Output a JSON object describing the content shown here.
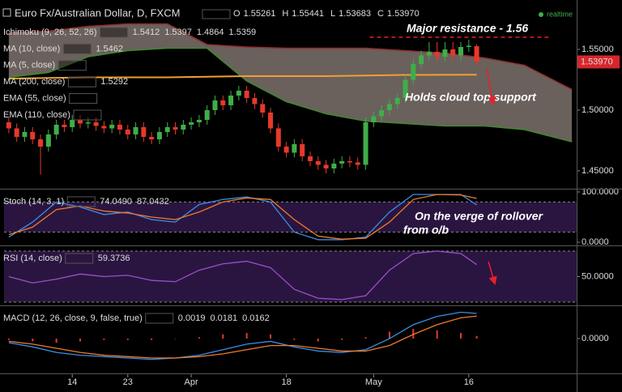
{
  "header": {
    "title": "Euro Fx/Australian Dollar, D, FXCM",
    "o_label": "O",
    "open": 1.55261,
    "h_label": "H",
    "high": 1.55441,
    "l_label": "L",
    "low": 1.53683,
    "c_label": "C",
    "status": "realtime"
  },
  "chart_data": [
    {
      "type": "candlestick",
      "open": [
        1.49,
        1.485,
        1.478,
        1.482,
        1.476,
        1.47,
        1.48,
        1.488,
        1.486,
        1.492,
        1.489,
        1.49,
        1.487,
        1.485,
        1.488,
        1.484,
        1.48,
        1.486,
        1.478,
        1.476,
        1.482,
        1.486,
        1.484,
        1.488,
        1.49,
        1.492,
        1.5,
        1.508,
        1.504,
        1.512,
        1.516,
        1.51,
        1.505,
        1.498,
        1.485,
        1.47,
        1.465,
        1.472,
        1.462,
        1.458,
        1.455,
        1.452,
        1.456,
        1.458,
        1.457,
        1.455,
        1.49,
        1.495,
        1.5,
        1.505,
        1.51,
        1.525,
        1.538,
        1.545,
        1.548,
        1.544,
        1.55,
        1.545,
        1.552,
        1.55261
      ],
      "high": [
        1.494,
        1.489,
        1.486,
        1.486,
        1.48,
        1.484,
        1.492,
        1.492,
        1.496,
        1.496,
        1.494,
        1.494,
        1.491,
        1.492,
        1.492,
        1.488,
        1.49,
        1.49,
        1.482,
        1.486,
        1.49,
        1.49,
        1.492,
        1.494,
        1.496,
        1.504,
        1.512,
        1.512,
        1.516,
        1.52,
        1.52,
        1.514,
        1.509,
        1.502,
        1.489,
        1.474,
        1.476,
        1.476,
        1.466,
        1.462,
        1.459,
        1.46,
        1.462,
        1.462,
        1.461,
        1.494,
        1.499,
        1.504,
        1.509,
        1.514,
        1.529,
        1.542,
        1.549,
        1.556,
        1.556,
        1.556,
        1.556,
        1.556,
        1.558,
        1.55441
      ],
      "low": [
        1.481,
        1.474,
        1.474,
        1.472,
        1.447,
        1.466,
        1.476,
        1.482,
        1.482,
        1.485,
        1.485,
        1.483,
        1.481,
        1.481,
        1.48,
        1.476,
        1.476,
        1.474,
        1.472,
        1.472,
        1.478,
        1.48,
        1.48,
        1.484,
        1.486,
        1.488,
        1.496,
        1.5,
        1.5,
        1.508,
        1.506,
        1.501,
        1.494,
        1.481,
        1.466,
        1.461,
        1.461,
        1.458,
        1.454,
        1.451,
        1.448,
        1.448,
        1.452,
        1.453,
        1.451,
        1.451,
        1.486,
        1.491,
        1.496,
        1.501,
        1.506,
        1.521,
        1.534,
        1.541,
        1.54,
        1.54,
        1.541,
        1.541,
        1.548,
        1.53683
      ],
      "close": [
        1.485,
        1.478,
        1.482,
        1.476,
        1.47,
        1.48,
        1.488,
        1.486,
        1.492,
        1.489,
        1.49,
        1.487,
        1.485,
        1.488,
        1.484,
        1.48,
        1.486,
        1.478,
        1.476,
        1.482,
        1.486,
        1.484,
        1.488,
        1.49,
        1.492,
        1.5,
        1.508,
        1.504,
        1.512,
        1.516,
        1.51,
        1.505,
        1.498,
        1.485,
        1.47,
        1.465,
        1.472,
        1.462,
        1.458,
        1.455,
        1.452,
        1.456,
        1.458,
        1.457,
        1.455,
        1.49,
        1.495,
        1.5,
        1.505,
        1.51,
        1.525,
        1.538,
        1.545,
        1.548,
        1.544,
        1.55,
        1.545,
        1.552,
        1.553,
        1.5397
      ],
      "xlim": [
        -0.6,
        71.6
      ],
      "xticks": [
        {
          "value": 8,
          "label": "14"
        },
        {
          "value": 15,
          "label": "23"
        },
        {
          "value": 23,
          "label": "Apr"
        },
        {
          "value": 35,
          "label": "18"
        },
        {
          "value": 46,
          "label": "May"
        },
        {
          "value": 58,
          "label": "16"
        }
      ],
      "ylim": [
        1.436,
        1.584
      ],
      "yticks": [
        {
          "value": 1.45,
          "label": "1.45000"
        },
        {
          "value": 1.5,
          "label": "1.50000"
        },
        {
          "value": 1.55,
          "label": "1.55000"
        }
      ],
      "up_color": "#3fae49",
      "down_color": "#e5392b",
      "last_price": {
        "value": 1.5397,
        "label": "1.53970"
      },
      "cloud": {
        "x": [
          0,
          5,
          10,
          15,
          20,
          25,
          30,
          35,
          40,
          45,
          50,
          55,
          60,
          65,
          71
        ],
        "upper": [
          1.564,
          1.565,
          1.569,
          1.571,
          1.571,
          1.554,
          1.552,
          1.551,
          1.551,
          1.551,
          1.549,
          1.547,
          1.543,
          1.537,
          1.517
        ],
        "lower": [
          1.527,
          1.531,
          1.544,
          1.549,
          1.551,
          1.551,
          1.524,
          1.507,
          1.497,
          1.491,
          1.489,
          1.487,
          1.487,
          1.484,
          1.474
        ],
        "upper_color": "#8e2b2b",
        "lower_color": "#3f8a2e",
        "fill": "#7d716c"
      },
      "ma200": {
        "x": [
          0,
          10,
          20,
          30,
          40,
          50,
          59
        ],
        "values": [
          1.526,
          1.527,
          1.527,
          1.528,
          1.528,
          1.529,
          1.5292
        ],
        "color": "#f0a030"
      },
      "resistance": {
        "value": 1.56,
        "label": "Major resistance - 1.56",
        "color": "#e8202a"
      },
      "annotations": [
        "Holds cloud top support"
      ],
      "indicators": [
        {
          "name": "Ichimoku (9, 26, 52, 26)",
          "values": [
            1.5412,
            1.5397,
            1.4864,
            1.5359
          ],
          "colors": [
            "#f2e94e",
            "#4caf50",
            "#4caf50",
            "#e5392b"
          ]
        },
        {
          "name": "MA (10, close)",
          "values": [
            1.5462
          ],
          "colors": [
            "#dddddd"
          ]
        },
        {
          "name": "MA (5, close)",
          "values": [],
          "colors": []
        },
        {
          "name": "MA (200, close)",
          "values": [
            1.5292
          ],
          "colors": [
            "#f0a030"
          ]
        },
        {
          "name": "EMA (55, close)",
          "values": [],
          "colors": []
        },
        {
          "name": "EMA (110, close)",
          "values": [],
          "colors": []
        }
      ]
    },
    {
      "type": "line",
      "title": "Stoch (14, 3, 1)",
      "x": [
        0,
        3,
        6,
        9,
        12,
        15,
        18,
        21,
        24,
        27,
        30,
        33,
        36,
        39,
        42,
        45,
        48,
        51,
        54,
        57,
        59
      ],
      "xlim": [
        -0.6,
        71.6
      ],
      "ylim": [
        -4.8,
        101.6
      ],
      "yticks": [
        {
          "value": 100,
          "label": "100.0000"
        },
        {
          "value": 0,
          "label": "0.0000"
        }
      ],
      "levels": [
        80,
        20
      ],
      "band_color": "#2a1540",
      "series": [
        {
          "color": "#3a8ee6",
          "values": [
            10,
            40,
            80,
            70,
            55,
            60,
            45,
            40,
            75,
            85,
            90,
            80,
            20,
            5,
            5,
            10,
            60,
            95,
            95,
            95,
            74.049
          ]
        },
        {
          "color": "#f07a2a",
          "values": [
            15,
            30,
            65,
            72,
            62,
            58,
            50,
            45,
            60,
            80,
            88,
            85,
            45,
            12,
            6,
            8,
            40,
            85,
            95,
            94,
            87.0432
          ]
        }
      ],
      "legend_values": [
        {
          "value": 74.049,
          "label": "74.0490"
        },
        87.0432
      ],
      "annotations": [
        "On the verge of rollover",
        "from o/b"
      ]
    },
    {
      "type": "line",
      "title": "RSI (14, close)",
      "x": [
        0,
        3,
        6,
        9,
        12,
        15,
        18,
        21,
        24,
        27,
        30,
        33,
        36,
        39,
        42,
        45,
        48,
        51,
        54,
        57,
        59
      ],
      "xlim": [
        -0.6,
        71.6
      ],
      "ylim": [
        28.1,
        72.5
      ],
      "yticks": [
        {
          "value": 50,
          "label": "50.0000"
        }
      ],
      "levels": [
        70,
        30
      ],
      "band_color": "#2a1540",
      "series": [
        {
          "color": "#9b4fc9",
          "values": [
            50,
            45,
            48,
            52,
            50,
            51,
            47,
            46,
            55,
            60,
            62,
            57,
            40,
            33,
            32,
            35,
            55,
            68,
            70,
            68,
            59.3736
          ]
        }
      ],
      "legend_values": [
        59.3736
      ]
    },
    {
      "type": "line",
      "title": "MACD (12, 26, close, 9, false, true)",
      "x": [
        0,
        3,
        6,
        9,
        12,
        15,
        18,
        21,
        24,
        27,
        30,
        33,
        36,
        39,
        42,
        45,
        48,
        51,
        54,
        57,
        59
      ],
      "xlim": [
        -0.6,
        71.6
      ],
      "ylim": [
        -0.0245,
        0.0222
      ],
      "yticks": [
        {
          "value": 0,
          "label": "0.0000"
        }
      ],
      "series": [
        {
          "type": "bar",
          "color": "#e5392b",
          "values": [
            -0.001,
            -0.002,
            -0.003,
            -0.002,
            -0.001,
            -0.001,
            -0.001,
            0,
            0.001,
            0.003,
            0.004,
            0.003,
            -0.001,
            -0.002,
            -0.001,
            0.001,
            0.005,
            0.007,
            0.006,
            0.004,
            0.0019
          ]
        },
        {
          "color": "#3a8ee6",
          "values": [
            -0.003,
            -0.006,
            -0.01,
            -0.012,
            -0.013,
            -0.014,
            -0.015,
            -0.014,
            -0.012,
            -0.008,
            -0.004,
            -0.002,
            -0.006,
            -0.009,
            -0.01,
            -0.008,
            0,
            0.01,
            0.016,
            0.019,
            0.0181
          ]
        },
        {
          "color": "#f07a2a",
          "values": [
            -0.002,
            -0.004,
            -0.007,
            -0.01,
            -0.012,
            -0.013,
            -0.014,
            -0.014,
            -0.013,
            -0.011,
            -0.008,
            -0.005,
            -0.005,
            -0.007,
            -0.009,
            -0.009,
            -0.005,
            0.003,
            0.01,
            0.015,
            0.0162
          ]
        }
      ],
      "legend_values": [
        0.0019,
        0.0181,
        0.0162
      ]
    }
  ]
}
